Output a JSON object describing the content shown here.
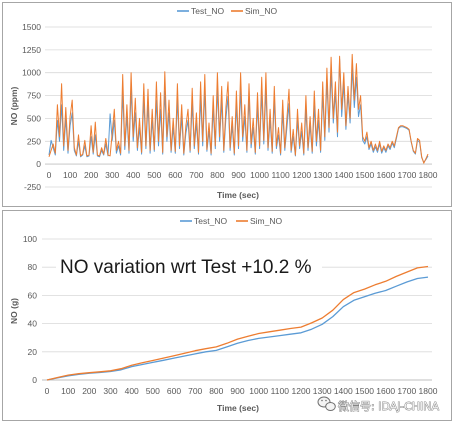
{
  "chart_data": [
    {
      "type": "line",
      "xlabel": "Time (sec)",
      "ylabel": "NO (ppm)",
      "xlim": [
        0,
        1800
      ],
      "ylim": [
        -250,
        1500
      ],
      "x_ticks": [
        0,
        100,
        200,
        300,
        400,
        500,
        600,
        700,
        800,
        900,
        1000,
        1100,
        1200,
        1300,
        1400,
        1500,
        1600,
        1700,
        1800
      ],
      "y_ticks": [
        -250,
        0,
        250,
        500,
        750,
        1000,
        1250,
        1500
      ],
      "grid": true,
      "legend": "top-center",
      "x": [
        0,
        10,
        20,
        30,
        40,
        50,
        60,
        70,
        80,
        90,
        100,
        110,
        120,
        130,
        140,
        150,
        160,
        170,
        180,
        190,
        200,
        210,
        220,
        230,
        240,
        250,
        260,
        270,
        280,
        290,
        300,
        310,
        320,
        330,
        340,
        350,
        360,
        370,
        380,
        390,
        400,
        410,
        420,
        430,
        440,
        450,
        460,
        470,
        480,
        490,
        500,
        510,
        520,
        530,
        540,
        550,
        560,
        570,
        580,
        590,
        600,
        610,
        620,
        630,
        640,
        650,
        660,
        670,
        680,
        690,
        700,
        710,
        720,
        730,
        740,
        750,
        760,
        770,
        780,
        790,
        800,
        810,
        820,
        830,
        840,
        850,
        860,
        870,
        880,
        890,
        900,
        910,
        920,
        930,
        940,
        950,
        960,
        970,
        980,
        990,
        1000,
        1010,
        1020,
        1030,
        1040,
        1050,
        1060,
        1070,
        1080,
        1090,
        1100,
        1110,
        1120,
        1130,
        1140,
        1150,
        1160,
        1170,
        1180,
        1190,
        1200,
        1210,
        1220,
        1230,
        1240,
        1250,
        1260,
        1270,
        1280,
        1290,
        1300,
        1310,
        1320,
        1330,
        1340,
        1350,
        1360,
        1370,
        1380,
        1390,
        1400,
        1410,
        1420,
        1430,
        1440,
        1450,
        1460,
        1470,
        1480,
        1490,
        1500,
        1510,
        1520,
        1530,
        1540,
        1550,
        1560,
        1570,
        1580,
        1590,
        1600,
        1610,
        1620,
        1630,
        1640,
        1650,
        1660,
        1670,
        1680,
        1690,
        1700,
        1710,
        1720,
        1730,
        1740,
        1750,
        1760,
        1770,
        1780,
        1790,
        1800
      ],
      "series": [
        {
          "name": "Test_NO",
          "color": "#5b9bd5",
          "values": [
            100,
            260,
            180,
            100,
            480,
            250,
            650,
            150,
            500,
            120,
            420,
            560,
            150,
            90,
            250,
            80,
            100,
            200,
            80,
            90,
            300,
            110,
            320,
            90,
            80,
            150,
            100,
            220,
            90,
            550,
            260,
            480,
            120,
            200,
            100,
            780,
            160,
            520,
            120,
            820,
            250,
            560,
            150,
            400,
            110,
            700,
            170,
            650,
            120,
            480,
            140,
            700,
            200,
            600,
            110,
            800,
            250,
            560,
            130,
            400,
            120,
            700,
            170,
            520,
            100,
            340,
            480,
            130,
            660,
            170,
            450,
            110,
            720,
            200,
            800,
            140,
            360,
            100,
            600,
            170,
            820,
            250,
            700,
            130,
            500,
            740,
            150,
            420,
            100,
            650,
            170,
            820,
            250,
            520,
            130,
            720,
            180,
            400,
            110,
            640,
            170,
            780,
            220,
            820,
            150,
            480,
            120,
            700,
            170,
            320,
            100,
            560,
            150,
            400,
            660,
            130,
            300,
            90,
            480,
            170,
            360,
            100,
            600,
            150,
            420,
            120,
            640,
            200,
            480,
            130,
            760,
            260,
            900,
            350,
            1000,
            450,
            780,
            300,
            1150,
            520,
            880,
            380,
            760,
            450,
            1050,
            620,
            950,
            520,
            650,
            260,
            220,
            300,
            160,
            220,
            130,
            190,
            130,
            220,
            120,
            180,
            130,
            200,
            160,
            230,
            180,
            280,
            390,
            410,
            410,
            400,
            390,
            370,
            240,
            140,
            110,
            260,
            240,
            70,
            20,
            50,
            90
          ]
        },
        {
          "name": "Sim_NO",
          "color": "#ed7d31",
          "values": [
            80,
            150,
            220,
            120,
            650,
            300,
            880,
            200,
            620,
            150,
            520,
            700,
            180,
            100,
            320,
            90,
            110,
            260,
            90,
            100,
            420,
            130,
            460,
            100,
            90,
            180,
            110,
            280,
            100,
            90,
            340,
            600,
            150,
            250,
            120,
            980,
            200,
            650,
            150,
            1000,
            300,
            720,
            180,
            500,
            130,
            880,
            200,
            820,
            150,
            600,
            160,
            900,
            250,
            780,
            130,
            1010,
            300,
            700,
            150,
            500,
            140,
            880,
            200,
            650,
            120,
            420,
            600,
            150,
            830,
            200,
            560,
            130,
            900,
            250,
            980,
            160,
            450,
            120,
            750,
            200,
            1000,
            300,
            850,
            150,
            620,
            900,
            180,
            520,
            120,
            800,
            200,
            1000,
            300,
            650,
            150,
            880,
            220,
            500,
            130,
            780,
            200,
            950,
            260,
            1000,
            180,
            600,
            140,
            850,
            200,
            400,
            120,
            700,
            180,
            500,
            820,
            150,
            380,
            100,
            600,
            200,
            450,
            120,
            750,
            180,
            520,
            140,
            800,
            250,
            600,
            150,
            900,
            300,
            1050,
            400,
            1170,
            500,
            900,
            350,
            1180,
            600,
            1000,
            420,
            850,
            500,
            1200,
            700,
            1100,
            600,
            750,
            300,
            250,
            350,
            180,
            250,
            150,
            220,
            150,
            250,
            140,
            200,
            150,
            220,
            180,
            250,
            200,
            300,
            400,
            420,
            420,
            410,
            400,
            380,
            250,
            150,
            120,
            280,
            260,
            80,
            10,
            60,
            110
          ]
        }
      ]
    },
    {
      "type": "line",
      "xlabel": "Time (sec)",
      "ylabel": "NO (g)",
      "xlim": [
        0,
        1800
      ],
      "ylim": [
        0,
        100
      ],
      "x_ticks": [
        0,
        100,
        200,
        300,
        400,
        500,
        600,
        700,
        800,
        900,
        1000,
        1100,
        1200,
        1300,
        1400,
        1500,
        1600,
        1700,
        1800
      ],
      "y_ticks": [
        0,
        20,
        40,
        60,
        80,
        100
      ],
      "grid": true,
      "legend": "top-center",
      "annotation": "NO variation wrt Test +10.2 %",
      "x": [
        0,
        50,
        100,
        150,
        200,
        250,
        300,
        350,
        400,
        450,
        500,
        550,
        600,
        650,
        700,
        750,
        800,
        850,
        900,
        950,
        1000,
        1050,
        1100,
        1150,
        1200,
        1250,
        1300,
        1350,
        1400,
        1450,
        1500,
        1550,
        1600,
        1650,
        1700,
        1750,
        1800
      ],
      "series": [
        {
          "name": "Test_NO",
          "color": "#5b9bd5",
          "values": [
            0,
            1.5,
            3.0,
            4.0,
            4.8,
            5.3,
            6.0,
            7.2,
            9.5,
            11.0,
            12.5,
            14.0,
            15.5,
            17.0,
            18.5,
            20.0,
            21.0,
            23.5,
            26.0,
            28.0,
            29.5,
            30.5,
            31.5,
            32.5,
            33.5,
            36.0,
            39.5,
            45.0,
            52.0,
            56.5,
            59.0,
            61.5,
            63.5,
            66.5,
            69.5,
            72.0,
            73.0
          ]
        },
        {
          "name": "Sim_NO",
          "color": "#ed7d31",
          "values": [
            0,
            1.8,
            3.5,
            4.5,
            5.2,
            5.8,
            6.5,
            8.0,
            10.5,
            12.2,
            13.8,
            15.5,
            17.2,
            19.0,
            20.8,
            22.2,
            23.5,
            26.0,
            29.0,
            31.0,
            33.0,
            34.2,
            35.3,
            36.5,
            37.5,
            40.5,
            44.0,
            49.5,
            57.0,
            62.0,
            64.5,
            67.5,
            70.0,
            73.5,
            76.5,
            79.5,
            80.5
          ]
        }
      ]
    }
  ],
  "watermark": {
    "icon": "wechat-icon",
    "text": "微信号: IDAJ-CHINA"
  }
}
